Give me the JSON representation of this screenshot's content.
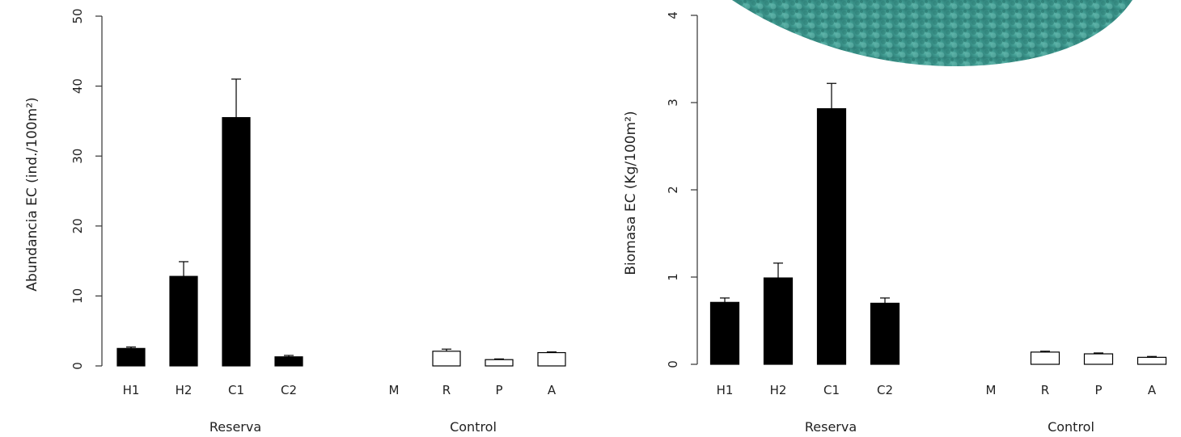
{
  "chart_data": [
    {
      "type": "bar",
      "ylabel": "Abundancia EC (ind./100m²)",
      "ylim": [
        0,
        50
      ],
      "yticks": [
        0,
        10,
        20,
        30,
        40,
        50
      ],
      "groups": [
        {
          "label": "Reserva",
          "categories": [
            "H1",
            "H2",
            "C1",
            "C2"
          ],
          "values": [
            2.5,
            12.8,
            35.5,
            1.3
          ],
          "errors": [
            0.2,
            2.1,
            5.5,
            0.2
          ],
          "fill": "#000000"
        },
        {
          "label": "Control",
          "categories": [
            "M",
            "R",
            "P",
            "A"
          ],
          "values": [
            0,
            2.1,
            0.9,
            1.9
          ],
          "errors": [
            0,
            0.3,
            0.1,
            0.1
          ],
          "fill": "#ffffff"
        }
      ]
    },
    {
      "type": "bar",
      "ylabel": "Biomasa EC (Kg/100m²)",
      "ylim": [
        0,
        4
      ],
      "yticks": [
        0,
        1,
        2,
        3,
        4
      ],
      "groups": [
        {
          "label": "Reserva",
          "categories": [
            "H1",
            "H2",
            "C1",
            "C2"
          ],
          "values": [
            0.71,
            0.99,
            2.93,
            0.7
          ],
          "errors": [
            0.05,
            0.17,
            0.29,
            0.06
          ],
          "fill": "#000000"
        },
        {
          "label": "Control",
          "categories": [
            "M",
            "R",
            "P",
            "A"
          ],
          "values": [
            0,
            0.14,
            0.12,
            0.08
          ],
          "errors": [
            0,
            0.01,
            0.01,
            0.01
          ],
          "fill": "#ffffff"
        }
      ]
    }
  ],
  "colors": {
    "bar_reserva": "#000000",
    "bar_control": "#ffffff",
    "axis": "#333333",
    "photo": "#3f9a90"
  }
}
